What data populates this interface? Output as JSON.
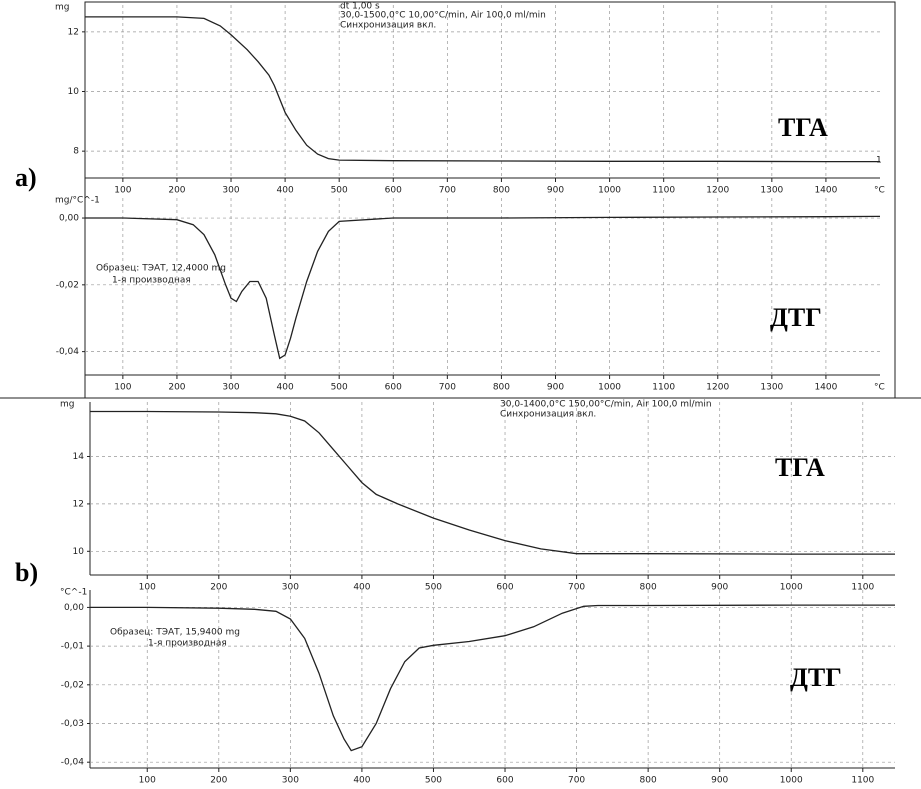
{
  "chart_data": [
    {
      "type": "line",
      "panel_label": "a)",
      "big_label": "ТГА",
      "y_label": "mg",
      "x_label": "°C",
      "annotations": [
        "dt 1,00 s",
        "30,0-1500,0°C 10,00°C/min, Air 100,0 ml/min",
        "Синхронизация вкл.",
        "1"
      ],
      "x": [
        30,
        100,
        200,
        250,
        280,
        300,
        330,
        350,
        370,
        380,
        400,
        420,
        440,
        460,
        480,
        500,
        600,
        800,
        1000,
        1200,
        1400,
        1500
      ],
      "values": [
        12.5,
        12.5,
        12.5,
        12.45,
        12.2,
        11.9,
        11.4,
        11.0,
        10.55,
        10.2,
        9.3,
        8.7,
        8.2,
        7.9,
        7.75,
        7.7,
        7.68,
        7.67,
        7.66,
        7.66,
        7.65,
        7.65
      ],
      "color": "#222",
      "xlim": [
        30,
        1500
      ],
      "xticks": [
        100,
        200,
        300,
        400,
        500,
        600,
        700,
        800,
        900,
        1000,
        1100,
        1200,
        1300,
        1400
      ],
      "ylim": [
        7.1,
        12.9
      ],
      "yticks": [
        8,
        10,
        12
      ],
      "grid": true
    },
    {
      "type": "line",
      "big_label": "ДТГ",
      "y_label": "mg/°C^-1",
      "x_label": "°C",
      "annotations": [
        "Образец: ТЭАТ, 12,4000 mg",
        "1-я производная"
      ],
      "x": [
        30,
        100,
        200,
        230,
        250,
        270,
        290,
        300,
        310,
        320,
        335,
        350,
        365,
        380,
        390,
        400,
        410,
        420,
        440,
        460,
        480,
        500,
        600,
        800,
        1000,
        1200,
        1400,
        1500
      ],
      "values": [
        0,
        0,
        -0.0005,
        -0.002,
        -0.005,
        -0.011,
        -0.02,
        -0.024,
        -0.025,
        -0.022,
        -0.019,
        -0.019,
        -0.024,
        -0.035,
        -0.042,
        -0.041,
        -0.036,
        -0.03,
        -0.019,
        -0.01,
        -0.004,
        -0.001,
        0,
        0,
        0.0002,
        0.0003,
        0.0004,
        0.0005
      ],
      "color": "#222",
      "xlim": [
        30,
        1500
      ],
      "xticks": [
        100,
        200,
        300,
        400,
        500,
        600,
        700,
        800,
        900,
        1000,
        1100,
        1200,
        1300,
        1400
      ],
      "ylim": [
        -0.047,
        0.006
      ],
      "yticks": [
        {
          "value": 0,
          "label": "0,00"
        },
        {
          "value": -0.02,
          "label": "-0,02"
        },
        {
          "value": -0.04,
          "label": "-0,04"
        }
      ],
      "grid": true
    },
    {
      "type": "line",
      "panel_label": "b)",
      "big_label": "ТГА",
      "y_label": "mg",
      "annotations": [
        "30,0-1400,0°C 150,00°C/min, Air 100,0 ml/min",
        "Синхронизация вкл."
      ],
      "x": [
        20,
        100,
        200,
        250,
        280,
        300,
        320,
        340,
        360,
        380,
        400,
        420,
        450,
        500,
        550,
        600,
        650,
        700,
        800,
        1000,
        1145
      ],
      "values": [
        15.9,
        15.9,
        15.88,
        15.85,
        15.8,
        15.7,
        15.5,
        15.0,
        14.3,
        13.6,
        12.9,
        12.4,
        12.0,
        11.4,
        10.9,
        10.45,
        10.1,
        9.9,
        9.9,
        9.88,
        9.88
      ],
      "color": "#222",
      "xlim": [
        20,
        1145
      ],
      "xticks": [
        100,
        200,
        300,
        400,
        500,
        600,
        700,
        800,
        900,
        1000,
        1100
      ],
      "ylim": [
        9,
        16.3
      ],
      "yticks": [
        10,
        12,
        14
      ],
      "grid": true
    },
    {
      "type": "line",
      "big_label": "ДТГ",
      "y_label": "°C^-1",
      "annotations": [
        "Образец: ТЭАТ, 15,9400 mg",
        "1-я производная"
      ],
      "x": [
        20,
        100,
        200,
        250,
        280,
        300,
        320,
        340,
        360,
        375,
        385,
        400,
        420,
        440,
        460,
        480,
        500,
        550,
        600,
        640,
        680,
        710,
        730,
        800,
        1000,
        1145
      ],
      "values": [
        0,
        0,
        -0.0002,
        -0.0005,
        -0.001,
        -0.003,
        -0.008,
        -0.017,
        -0.028,
        -0.034,
        -0.037,
        -0.036,
        -0.03,
        -0.021,
        -0.014,
        -0.0105,
        -0.0098,
        -0.0088,
        -0.0073,
        -0.005,
        -0.0015,
        0.0003,
        0.0005,
        0.0005,
        0.0006,
        0.0006
      ],
      "color": "#222",
      "xlim": [
        20,
        1145
      ],
      "xticks": [
        100,
        200,
        300,
        400,
        500,
        600,
        700,
        800,
        900,
        1000,
        1100
      ],
      "ylim": [
        -0.0415,
        0.0045
      ],
      "yticks": [
        {
          "value": 0,
          "label": "0,00"
        },
        {
          "value": -0.01,
          "label": "-0,01"
        },
        {
          "value": -0.02,
          "label": "-0,02"
        },
        {
          "value": -0.03,
          "label": "-0,03"
        },
        {
          "value": -0.04,
          "label": "-0,04"
        }
      ],
      "grid": true
    }
  ]
}
